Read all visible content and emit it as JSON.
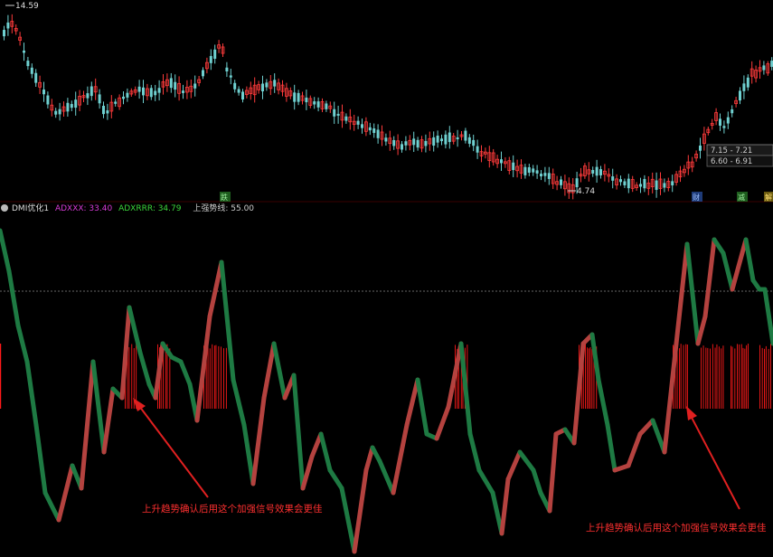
{
  "price_panel": {
    "high_label": "14.59",
    "low_label": "4.74",
    "price_tag_1": "7.15 - 7.21",
    "price_tag_2": "6.60 - 6.91",
    "markers": [
      "跌",
      "财",
      "减",
      "解"
    ]
  },
  "indicator_panel": {
    "name": "DMI优化1",
    "adx_label": "ADXXX: 33.40",
    "adxr_label": "ADXRRR: 34.79",
    "threshold_label": "上强势线: 55.00"
  },
  "annotations": [
    {
      "text": "上升趋势确认后用这个加强信号效果会更佳"
    },
    {
      "text": "上升趋势确认后用这个加强信号效果会更佳"
    }
  ],
  "colors": {
    "up_candle": "#ff3b3b",
    "down_candle": "#6fd0d0",
    "adx_rising": "#b4423f",
    "adx_falling": "#1e7a43",
    "signal_bar": "#ff1a1a",
    "arrow": "#e02020",
    "adx_label": "#d63bd6",
    "adxr_label": "#3bd63b",
    "threshold_label": "#cccccc",
    "annotation": "#ff3030"
  }
}
